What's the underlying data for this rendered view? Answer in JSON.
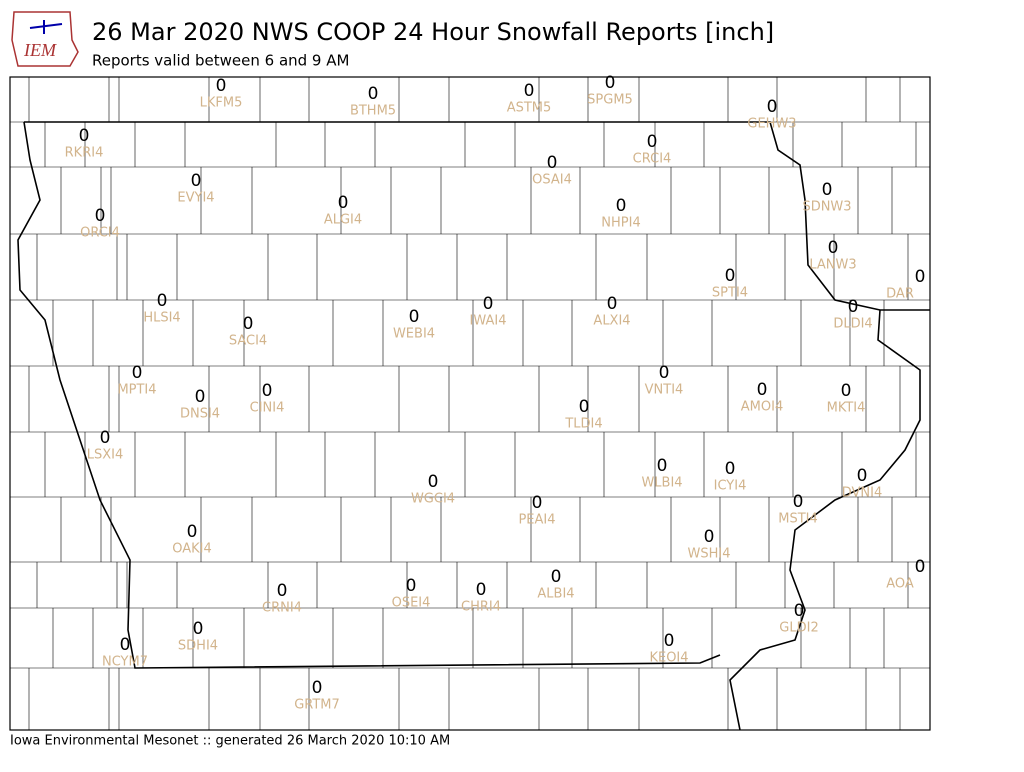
{
  "header": {
    "logo": "IEM",
    "title": "26 Mar 2020 NWS COOP 24 Hour Snowfall Reports [inch]",
    "subtitle": "Reports valid between 6 and 9 AM"
  },
  "footer": "Iowa Environmental Mesonet :: generated 26 March 2020 10:10 AM",
  "stations": [
    {
      "id": "LKFM5",
      "value": 0
    },
    {
      "id": "BTHM5",
      "value": 0
    },
    {
      "id": "ASTM5",
      "value": 0
    },
    {
      "id": "SPGM5",
      "value": 0
    },
    {
      "id": "GEHW3",
      "value": 0
    },
    {
      "id": "RKRI4",
      "value": 0
    },
    {
      "id": "CRCI4",
      "value": 0
    },
    {
      "id": "OSAI4",
      "value": 0
    },
    {
      "id": "EVYI4",
      "value": 0
    },
    {
      "id": "SDNW3",
      "value": 0
    },
    {
      "id": "ALGI4",
      "value": 0
    },
    {
      "id": "NHPI4",
      "value": 0
    },
    {
      "id": "ORCI4",
      "value": 0
    },
    {
      "id": "LANW3",
      "value": 0
    },
    {
      "id": "SPTI4",
      "value": 0
    },
    {
      "id": "DAR",
      "value": 0
    },
    {
      "id": "HLSI4",
      "value": 0
    },
    {
      "id": "ALXI4",
      "value": 0
    },
    {
      "id": "IWAI4",
      "value": 0
    },
    {
      "id": "WEBI4",
      "value": 0
    },
    {
      "id": "DLDI4",
      "value": 0
    },
    {
      "id": "SACI4",
      "value": 0
    },
    {
      "id": "MPTI4",
      "value": 0
    },
    {
      "id": "VNTI4",
      "value": 0
    },
    {
      "id": "AMOI4",
      "value": 0
    },
    {
      "id": "MKTI4",
      "value": 0
    },
    {
      "id": "DNSI4",
      "value": 0
    },
    {
      "id": "CINI4",
      "value": 0
    },
    {
      "id": "TLDI4",
      "value": 0
    },
    {
      "id": "LSXI4",
      "value": 0
    },
    {
      "id": "WLBI4",
      "value": 0
    },
    {
      "id": "ICYI4",
      "value": 0
    },
    {
      "id": "DVNI4",
      "value": 0
    },
    {
      "id": "WGCI4",
      "value": 0
    },
    {
      "id": "PEAI4",
      "value": 0
    },
    {
      "id": "MSTI4",
      "value": 0
    },
    {
      "id": "OAKI4",
      "value": 0
    },
    {
      "id": "WSHI4",
      "value": 0
    },
    {
      "id": "AOA",
      "value": 0
    },
    {
      "id": "ALBI4",
      "value": 0
    },
    {
      "id": "OSEI4",
      "value": 0
    },
    {
      "id": "CHRI4",
      "value": 0
    },
    {
      "id": "CRNI4",
      "value": 0
    },
    {
      "id": "SDHI4",
      "value": 0
    },
    {
      "id": "NCYM7",
      "value": 0
    },
    {
      "id": "GLDI2",
      "value": 0
    },
    {
      "id": "KEOI4",
      "value": 0
    },
    {
      "id": "GRTM7",
      "value": 0
    }
  ]
}
